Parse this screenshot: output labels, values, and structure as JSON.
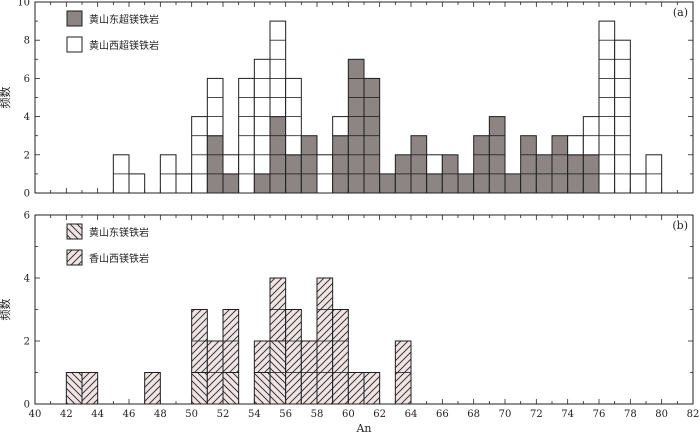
{
  "chart_data": [
    {
      "panel": "(a)",
      "type": "bar",
      "stacked": true,
      "ylabel": "频数",
      "xlabel": "",
      "xlim": [
        40,
        82
      ],
      "ylim": [
        0,
        10
      ],
      "yticks": [
        0,
        2,
        4,
        6,
        8,
        10
      ],
      "bin_width": 1,
      "legend_position": "top-left",
      "x": [
        42,
        43,
        44,
        45,
        46,
        47,
        48,
        49,
        50,
        51,
        52,
        53,
        54,
        55,
        56,
        57,
        58,
        59,
        60,
        61,
        62,
        63,
        64,
        65,
        66,
        67,
        68,
        69,
        70,
        71,
        72,
        73,
        74,
        75,
        76,
        77,
        78,
        79,
        80,
        81
      ],
      "series": [
        {
          "name": "黄山东超镁铁岩",
          "color": "#8c8584",
          "values": [
            0,
            0,
            0,
            0,
            0,
            0,
            0,
            0,
            0,
            3,
            1,
            0,
            1,
            4,
            2,
            3,
            0,
            3,
            7,
            6,
            1,
            2,
            3,
            1,
            2,
            1,
            3,
            4,
            1,
            3,
            2,
            3,
            2,
            2,
            0,
            0,
            0,
            0,
            0,
            0
          ]
        },
        {
          "name": "黄山西超镁铁岩",
          "color": "#ffffff",
          "values": [
            0,
            0,
            0,
            2,
            1,
            0,
            2,
            1,
            4,
            3,
            1,
            6,
            6,
            5,
            4,
            0,
            2,
            1,
            0,
            0,
            0,
            0,
            0,
            1,
            0,
            0,
            0,
            0,
            0,
            0,
            0,
            0,
            1,
            2,
            9,
            8,
            1,
            2,
            0,
            0
          ]
        }
      ]
    },
    {
      "panel": "(b)",
      "type": "bar",
      "stacked": true,
      "ylabel": "频数",
      "xlabel": "An",
      "xlim": [
        40,
        82
      ],
      "ylim": [
        0,
        6
      ],
      "yticks": [
        0,
        2,
        4,
        6
      ],
      "xticks": [
        40,
        42,
        44,
        46,
        48,
        50,
        52,
        54,
        56,
        58,
        60,
        62,
        64,
        66,
        68,
        70,
        72,
        74,
        76,
        78,
        80,
        82
      ],
      "bin_width": 1,
      "legend_position": "top-left",
      "x": [
        42,
        43,
        47,
        50,
        51,
        52,
        54,
        55,
        56,
        57,
        58,
        59,
        60,
        61,
        63
      ],
      "series": [
        {
          "name": "黄山东镁铁岩",
          "color": "#f0e4e4",
          "hatch": "back",
          "values": [
            1,
            0,
            0,
            1,
            0,
            1,
            1,
            2,
            0,
            0,
            0,
            0,
            0,
            0,
            0
          ]
        },
        {
          "name": "香山西镁铁岩",
          "color": "#f0e4e4",
          "hatch": "fwd",
          "values": [
            0,
            1,
            1,
            2,
            2,
            2,
            1,
            2,
            3,
            2,
            4,
            3,
            1,
            1,
            2
          ]
        }
      ]
    }
  ]
}
